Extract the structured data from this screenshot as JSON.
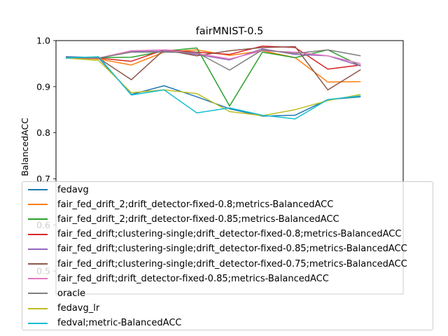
{
  "chart_data": {
    "type": "line",
    "title": "fairMNIST-0.5",
    "xlabel": "",
    "ylabel": "BalancedACC",
    "x": [
      0,
      1,
      2,
      3,
      4,
      5,
      6,
      7,
      8,
      9,
      10
    ],
    "xlim": [
      -0.3,
      10.3
    ],
    "ylim": [
      0.45,
      1.0
    ],
    "yticks": [
      0.5,
      0.6,
      0.7,
      0.8,
      0.9,
      1.0
    ],
    "ytick_labels": [
      "0.5",
      "0.6",
      "0.7",
      "0.8",
      "0.9",
      "1.0"
    ],
    "show_xticks": false,
    "grid": false,
    "legend_position": "lower-center",
    "series": [
      {
        "name": "fedavg",
        "color": "#1f77b4",
        "values": [
          0.965,
          0.963,
          0.883,
          0.902,
          0.878,
          0.852,
          0.836,
          0.838,
          0.872,
          0.878,
          null
        ]
      },
      {
        "name": "fair_fed_drift_2;drift_detector-fixed-0.8;metrics-BalancedACC",
        "color": "#ff7f0e",
        "values": [
          0.963,
          0.96,
          0.947,
          0.975,
          0.98,
          0.968,
          0.978,
          0.963,
          0.91,
          0.911,
          null
        ]
      },
      {
        "name": "fair_fed_drift_2;drift_detector-fixed-0.85;metrics-BalancedACC",
        "color": "#2ca02c",
        "values": [
          0.963,
          0.963,
          0.964,
          0.977,
          0.984,
          0.858,
          0.975,
          0.963,
          0.98,
          0.945,
          null
        ]
      },
      {
        "name": "fair_fed_drift;clustering-single;drift_detector-fixed-0.8;metrics-BalancedACC",
        "color": "#d62728",
        "values": [
          0.963,
          0.962,
          0.955,
          0.98,
          0.975,
          0.97,
          0.988,
          0.985,
          0.938,
          0.947,
          null
        ]
      },
      {
        "name": "fair_fed_drift;clustering-single;drift_detector-fixed-0.85;metrics-BalancedACC",
        "color": "#9467bd",
        "values": [
          0.963,
          0.962,
          0.976,
          0.977,
          0.97,
          0.958,
          0.982,
          0.97,
          0.967,
          0.945,
          null
        ]
      },
      {
        "name": "fair_fed_drift;clustering-single;drift_detector-fixed-0.75;metrics-BalancedACC",
        "color": "#8c564b",
        "values": [
          0.963,
          0.962,
          0.915,
          0.98,
          0.967,
          0.978,
          0.985,
          0.987,
          0.893,
          0.937,
          null
        ]
      },
      {
        "name": "fair_fed_drift;drift_detector-fixed-0.85;metrics-BalancedACC",
        "color": "#e377c2",
        "values": [
          0.963,
          0.962,
          0.978,
          0.98,
          0.972,
          0.96,
          0.978,
          0.975,
          0.967,
          0.95,
          null
        ]
      },
      {
        "name": "oracle",
        "color": "#7f7f7f",
        "values": [
          0.963,
          0.962,
          0.975,
          0.975,
          0.974,
          0.936,
          0.98,
          0.972,
          0.98,
          0.967,
          null
        ]
      },
      {
        "name": "fedavg_lr",
        "color": "#bcbd22",
        "values": [
          0.962,
          0.957,
          0.887,
          0.893,
          0.885,
          0.846,
          0.837,
          0.85,
          0.87,
          0.883,
          null
        ]
      },
      {
        "name": "fedval;metric-BalancedACC",
        "color": "#17becf",
        "values": [
          0.962,
          0.965,
          0.882,
          0.893,
          0.843,
          0.854,
          0.838,
          0.83,
          0.872,
          0.88,
          null
        ]
      }
    ]
  }
}
